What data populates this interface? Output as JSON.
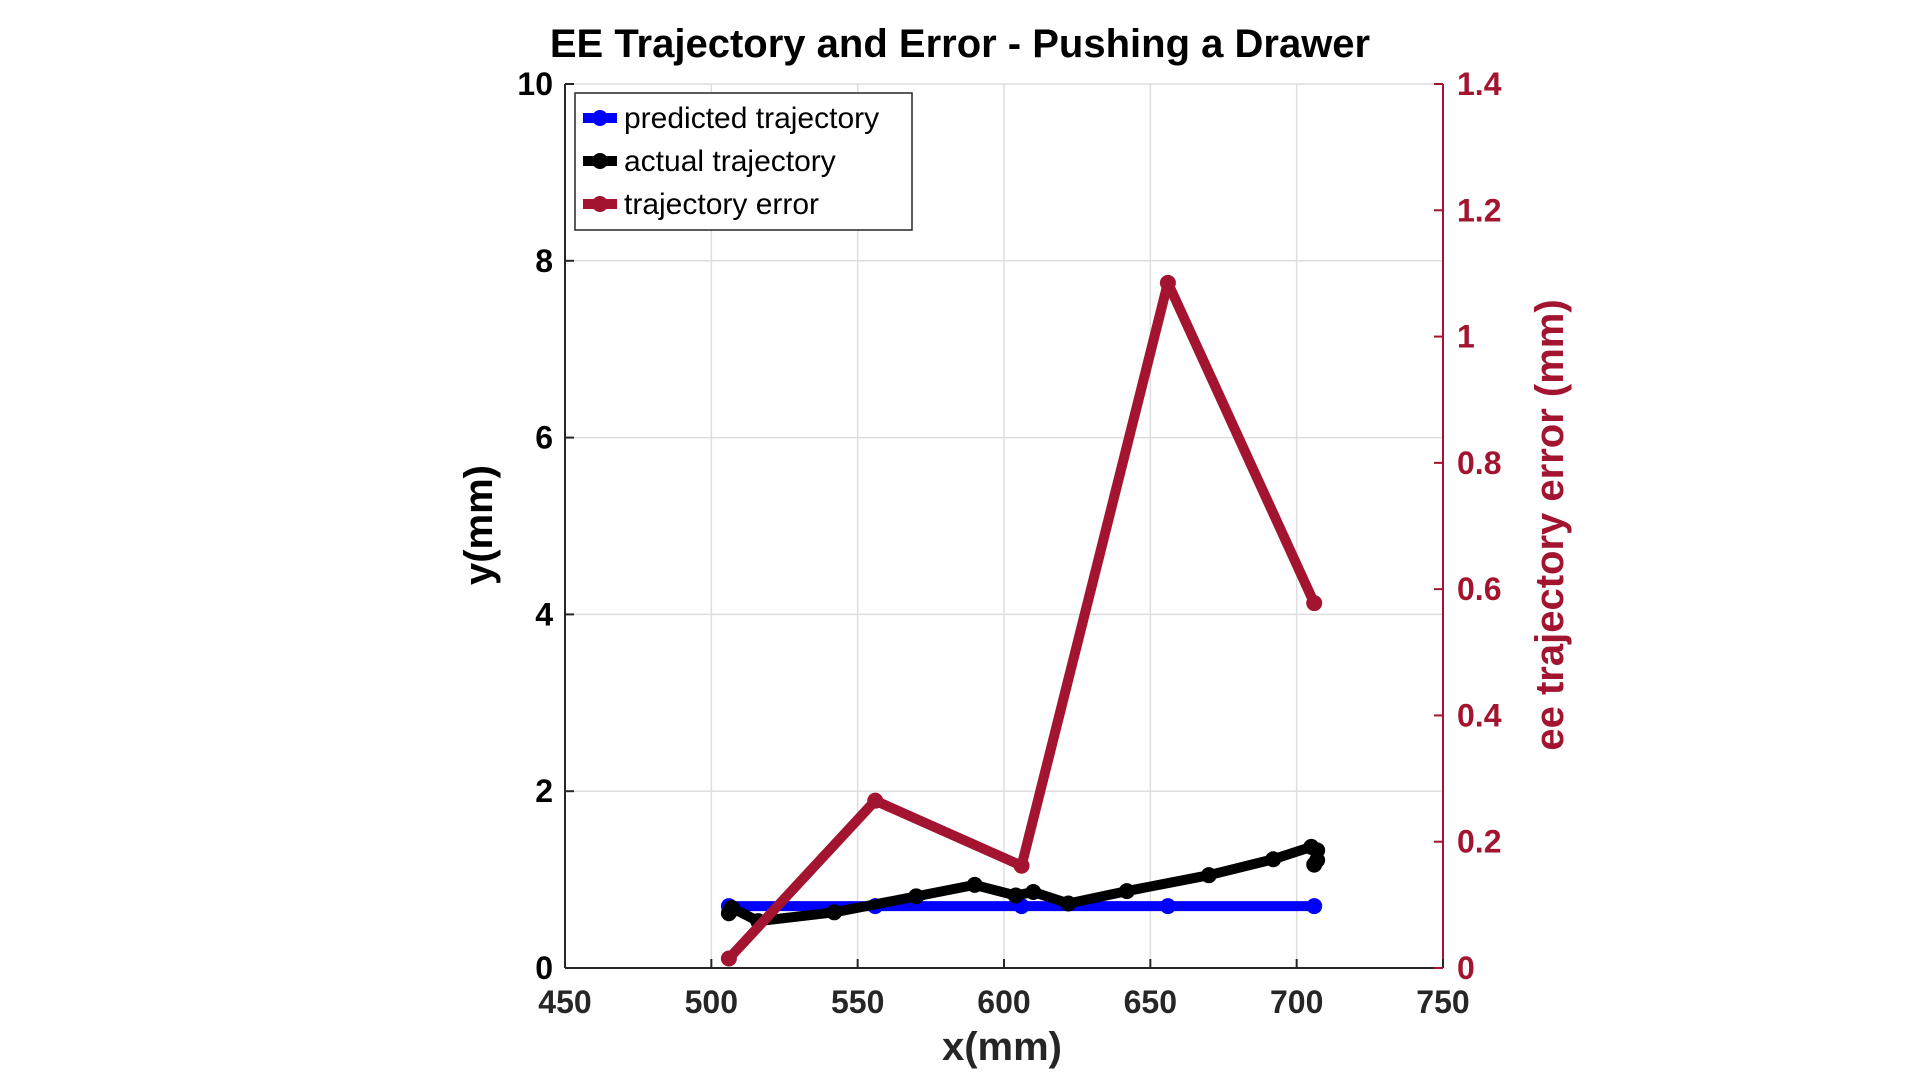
{
  "chart_data": {
    "type": "line",
    "title": "EE Trajectory and Error - Pushing a Drawer",
    "xlabel": "x(mm)",
    "ylabel": "y(mm)",
    "y2label": "ee trajectory error (mm)",
    "xlim": [
      450,
      750
    ],
    "ylim": [
      0,
      10
    ],
    "y2lim": [
      0,
      1.4
    ],
    "xticks": [
      "450",
      "500",
      "550",
      "600",
      "650",
      "700",
      "750"
    ],
    "yticks": [
      "0",
      "2",
      "4",
      "6",
      "8",
      "10"
    ],
    "y2ticks": [
      "0",
      "0.2",
      "0.4",
      "0.6",
      "0.8",
      "1",
      "1.2",
      "1.4"
    ],
    "grid": true,
    "legend_position": "top-left",
    "colors": {
      "predicted": "#0000ff",
      "actual": "#000000",
      "error": "#a2142f",
      "axis_left": "#262626",
      "axis_right": "#a2142f"
    },
    "series": [
      {
        "name": "predicted trajectory",
        "axis": "left",
        "color": "#0000ff",
        "x": [
          506,
          556,
          606,
          656,
          706
        ],
        "y": [
          0.7,
          0.7,
          0.7,
          0.7,
          0.7
        ]
      },
      {
        "name": "actual trajectory",
        "axis": "left",
        "color": "#000000",
        "x": [
          506,
          507,
          516,
          542,
          570,
          590,
          604,
          610,
          622,
          642,
          670,
          692,
          705,
          707,
          707,
          706
        ],
        "y": [
          0.62,
          0.68,
          0.53,
          0.63,
          0.81,
          0.94,
          0.82,
          0.86,
          0.73,
          0.87,
          1.05,
          1.23,
          1.37,
          1.33,
          1.22,
          1.17
        ]
      },
      {
        "name": "trajectory error",
        "axis": "right",
        "color": "#a2142f",
        "x": [
          506,
          556,
          606,
          656,
          706
        ],
        "y": [
          0.015,
          0.265,
          0.162,
          1.085,
          0.578
        ]
      }
    ]
  }
}
